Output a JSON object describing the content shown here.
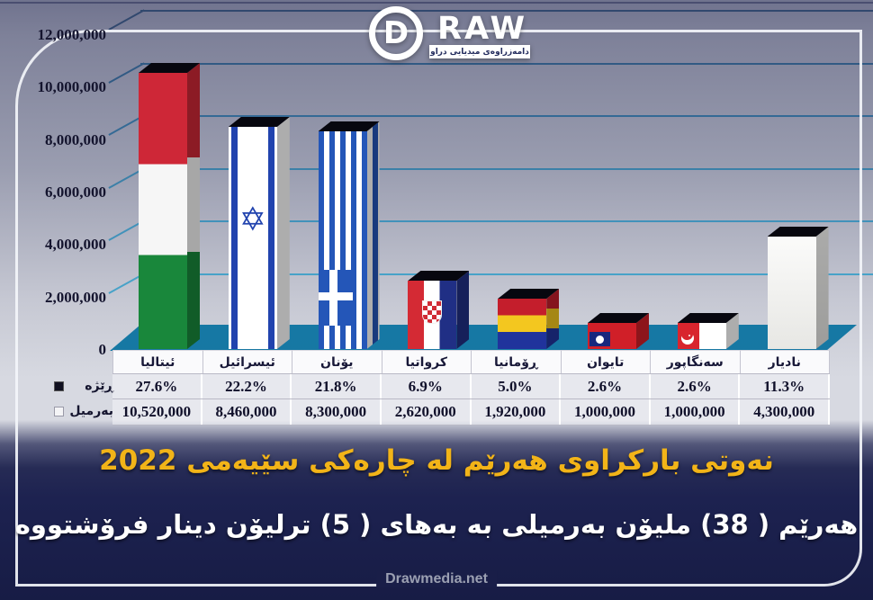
{
  "logo": {
    "initial": "D",
    "name": "RAW",
    "tagline": "دامەزراوەی میدیایی دراو"
  },
  "chart_data": {
    "type": "bar",
    "title": "نەوتی بارکراوی هەرێم له چارەکی سێیەمی  2022",
    "categories": [
      "ئیتالیا",
      "ئیسرائیل",
      "یۆنان",
      "کرواتیا",
      "ڕۆمانیا",
      "تایوان",
      "سەنگاپور",
      "نادیار"
    ],
    "series": [
      {
        "name": "ڕێژه",
        "type": "percent",
        "labels": [
          "27.6%",
          "22.2%",
          "21.8%",
          "6.9%",
          "5.0%",
          "2.6%",
          "2.6%",
          "11.3%"
        ]
      },
      {
        "name": "بەرمیل",
        "type": "barrels",
        "values": [
          10520000,
          8460000,
          8300000,
          2620000,
          1920000,
          1000000,
          1000000,
          4300000
        ],
        "labels": [
          "10,520,000",
          "8,460,000",
          "8,300,000",
          "2,620,000",
          "1,920,000",
          "1,000,000",
          "1,000,000",
          "4,300,000"
        ]
      }
    ],
    "flags": [
      "flag-italy",
      "flag-israel",
      "flag-greece",
      "flag-croatia",
      "flag-romania",
      "flag-taiwan",
      "flag-singapore",
      "flag-unknown"
    ],
    "y_ticks": [
      "12,000,000",
      "10,000,000",
      "8,000,000",
      "6,000,000",
      "4,000,000",
      "2,000,000",
      "0"
    ],
    "ylim": [
      0,
      12000000
    ],
    "grid": true,
    "legend_position": "table-left"
  },
  "captions": {
    "title_gold": "نەوتی بارکراوی هەرێم له چارەکی سێیەمی  2022",
    "subtitle_white": "هەرێم ( 38) ملیۆن بەرمیلی به بەهای ( 5) ترلیۆن دینار فرۆشتووه",
    "footer": "Drawmedia.net"
  },
  "colors": {
    "gold": "#f2b418",
    "floor_teal": "#1474a0",
    "navy_bg": "#1d2250",
    "grid_blue": "#3b80a8",
    "frame_white": "#f3f5fa"
  }
}
